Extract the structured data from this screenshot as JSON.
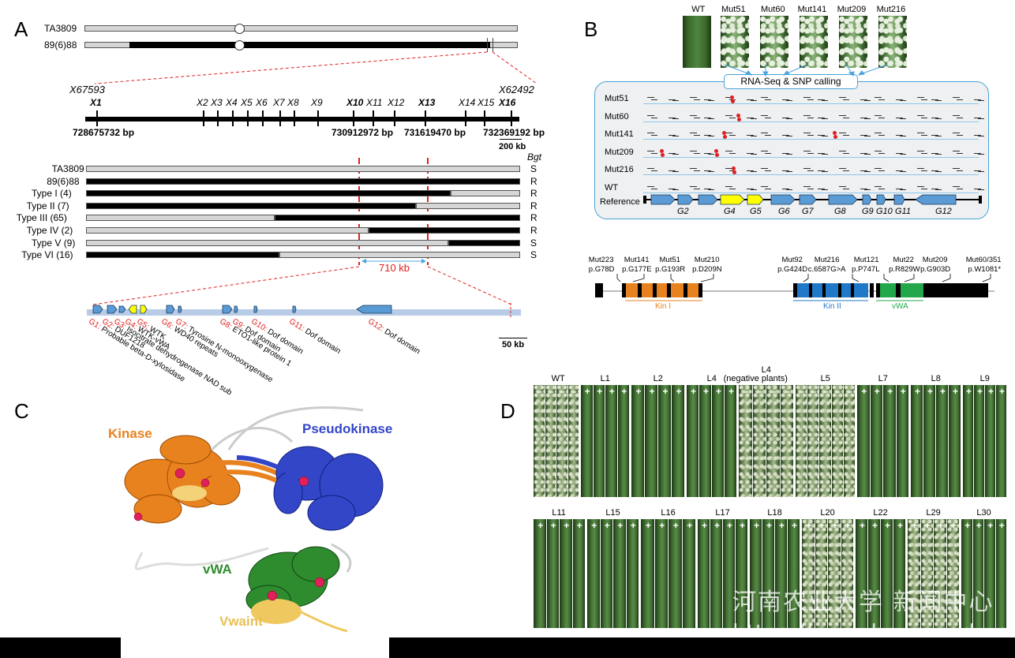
{
  "panels": {
    "a": "A",
    "b": "B",
    "c": "C",
    "d": "D"
  },
  "panelA": {
    "chrom": [
      {
        "name": "TA3809"
      },
      {
        "name": "89(6)88"
      }
    ],
    "markers_top": {
      "left_name": "X67593",
      "left_id": "X1",
      "right_name": "X62492",
      "right_id": "X16"
    },
    "markers": [
      "X2",
      "X3",
      "X4",
      "X5",
      "X6",
      "X7",
      "X8",
      "X9",
      "X10",
      "X11",
      "X12",
      "X13",
      "X14",
      "X15"
    ],
    "positions": {
      "p1": "728675732 bp",
      "p2": "730912972 bp",
      "p3": "731619470 bp",
      "p4": "732369192 bp"
    },
    "scale1": "200 kb",
    "bgt_header": "Bgt",
    "rows": [
      {
        "label": "TA3809",
        "res": "S"
      },
      {
        "label": "89(6)88",
        "res": "R"
      },
      {
        "label": "Type I (4)",
        "res": "R"
      },
      {
        "label": "Type II (7)",
        "res": "R"
      },
      {
        "label": "Type III (65)",
        "res": "R"
      },
      {
        "label": "Type IV (2)",
        "res": "R"
      },
      {
        "label": "Type V (9)",
        "res": "S"
      },
      {
        "label": "Type VI (16)",
        "res": "S"
      }
    ],
    "interval": "710 kb",
    "scale2": "50 kb",
    "genes": [
      {
        "id": "G1:",
        "desc": "Probable beta-D-xylosidase"
      },
      {
        "id": "G2:",
        "desc": "DUF1218"
      },
      {
        "id": "G3:",
        "desc": "Isocitrate dehydrogenase NAD sub"
      },
      {
        "id": "G4:",
        "desc": "WTK-vWA"
      },
      {
        "id": "G5:",
        "desc": "WTK"
      },
      {
        "id": "G6:",
        "desc": "WD40 repeats"
      },
      {
        "id": "G7:",
        "desc": "Tyrosine N-monooxygenase"
      },
      {
        "id": "G8:",
        "desc": "ETO1-like protein 1"
      },
      {
        "id": "G9:",
        "desc": "Dof domain"
      },
      {
        "id": "G10:",
        "desc": "Dof domain"
      },
      {
        "id": "G11:",
        "desc": "Dof domain"
      },
      {
        "id": "G12:",
        "desc": "Dof domain"
      }
    ]
  },
  "panelB": {
    "top_labels": [
      "WT",
      "Mut51",
      "Mut60",
      "Mut141",
      "Mut209",
      "Mut216"
    ],
    "box_title": "RNA-Seq  &  SNP calling",
    "row_labels": [
      "Mut51",
      "Mut60",
      "Mut141",
      "Mut209",
      "Mut216",
      "WT"
    ],
    "ref_label": "Reference",
    "ref_genes": [
      "G2",
      "G4",
      "G5",
      "G6",
      "G7",
      "G8",
      "G9",
      "G10",
      "G11",
      "G12"
    ],
    "mutations": [
      {
        "name": "Mut223",
        "change": "p.G78D"
      },
      {
        "name": "Mut141",
        "change": "p.G177E"
      },
      {
        "name": "Mut51",
        "change": "p.G193R"
      },
      {
        "name": "Mut210",
        "change": "p.D209N"
      },
      {
        "name": "Mut92",
        "change": "p.G424D"
      },
      {
        "name": "Mut216",
        "change": "c.6587G>A"
      },
      {
        "name": "Mut121",
        "change": "p.P747L"
      },
      {
        "name": "Mut22",
        "change": "p.R829W"
      },
      {
        "name": "Mut209",
        "change": "p.G903D"
      },
      {
        "name": "Mut60/351",
        "change": "p.W1081*"
      }
    ],
    "domains": [
      "Kin I",
      "Kin II",
      "vWA"
    ]
  },
  "panelC": {
    "kinase": "Kinase",
    "pseudokinase": "Pseudokinase",
    "vwa": "vWA",
    "vwaint": "Vwaint"
  },
  "panelD": {
    "row1": [
      "WT",
      "L1",
      "L2",
      "L4",
      "L4\n(negative plants)",
      "L5",
      "L7",
      "L8",
      "L9"
    ],
    "row2": [
      "L11",
      "L15",
      "L16",
      "L17",
      "L18",
      "L20",
      "L22",
      "L29",
      "L30"
    ]
  },
  "watermark": {
    "cn": "河南农业大学 新闻中心",
    "url": "https://www.henau.edu.cn"
  },
  "colors": {
    "red": "#e02020",
    "orange": "#e8821e",
    "blue": "#1f78c8",
    "green": "#22a84a",
    "gene_blue": "#5b9bd5",
    "yellow": "#ffff00",
    "leaf": "#4a7a3a"
  }
}
